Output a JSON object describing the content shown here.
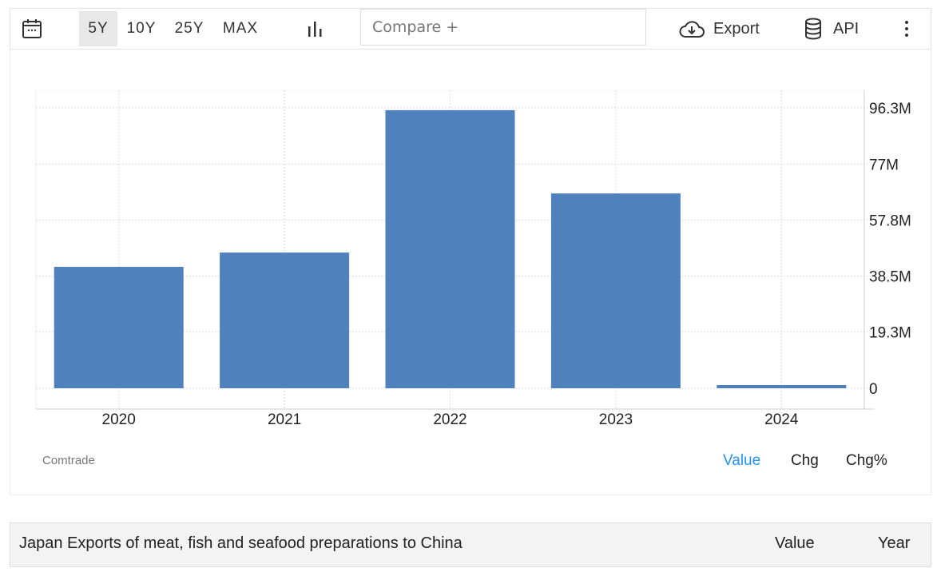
{
  "toolbar": {
    "calendar_icon": "calendar-icon",
    "ranges": [
      {
        "label": "5Y",
        "active": true
      },
      {
        "label": "10Y"
      },
      {
        "label": "25Y"
      },
      {
        "label": "MAX"
      }
    ],
    "chart_type_icon": "bar-chart-icon",
    "compare_placeholder": "Compare +",
    "export_label": "Export",
    "api_label": "API"
  },
  "chart_data": {
    "type": "bar",
    "categories": [
      "2020",
      "2021",
      "2022",
      "2023",
      "2024"
    ],
    "values": [
      41.7,
      46.6,
      95.5,
      66.9,
      1.1
    ],
    "unit": "M",
    "ylim": [
      0,
      96.3
    ],
    "yticks": [
      0,
      19.3,
      38.5,
      57.8,
      77,
      96.3
    ],
    "ytick_labels": [
      "0",
      "19.3M",
      "38.5M",
      "57.8M",
      "77M",
      "96.3M"
    ],
    "y_axis_position": "right",
    "grid": true,
    "bar_color": "#4f81bd"
  },
  "source": "Comtrade",
  "modes": [
    {
      "label": "Value",
      "active": true,
      "color": "#2196f3"
    },
    {
      "label": "Chg"
    },
    {
      "label": "Chg%"
    }
  ],
  "table": {
    "title": "Japan Exports of meat, fish and seafood preparations to China",
    "col_value": "Value",
    "col_year": "Year"
  }
}
